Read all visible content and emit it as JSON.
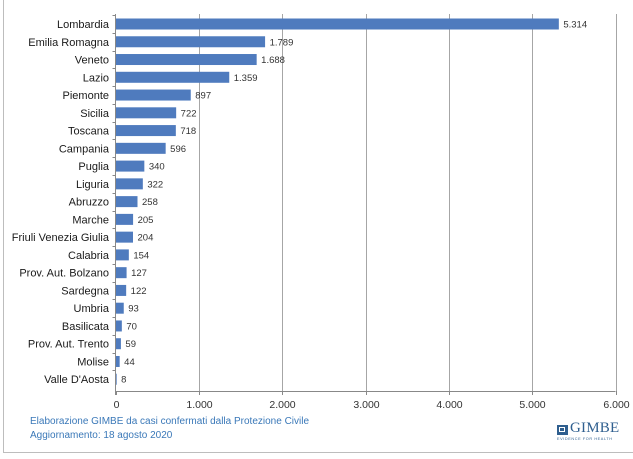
{
  "chart_data": {
    "type": "bar",
    "orientation": "horizontal",
    "title": "",
    "xlabel": "",
    "ylabel": "",
    "categories": [
      "Lombardia",
      "Emilia Romagna",
      "Veneto",
      "Lazio",
      "Piemonte",
      "Sicilia",
      "Toscana",
      "Campania",
      "Puglia",
      "Liguria",
      "Abruzzo",
      "Marche",
      "Friuli Venezia Giulia",
      "Calabria",
      "Prov. Aut. Bolzano",
      "Sardegna",
      "Umbria",
      "Basilicata",
      "Prov. Aut. Trento",
      "Molise",
      "Valle D'Aosta"
    ],
    "values": [
      5314,
      1789,
      1688,
      1359,
      897,
      722,
      718,
      596,
      340,
      322,
      258,
      205,
      204,
      154,
      127,
      122,
      93,
      70,
      59,
      44,
      8
    ],
    "value_labels": [
      "5.314",
      "1.789",
      "1.688",
      "1.359",
      "897",
      "722",
      "718",
      "596",
      "340",
      "322",
      "258",
      "205",
      "204",
      "154",
      "127",
      "122",
      "93",
      "70",
      "59",
      "44",
      "8"
    ],
    "xlim": [
      0,
      6000
    ],
    "xticks": [
      0,
      1000,
      2000,
      3000,
      4000,
      5000,
      6000
    ],
    "xtick_labels": [
      "0",
      "1.000",
      "2.000",
      "3.000",
      "4.000",
      "5.000",
      "6.000"
    ],
    "grid": "vertical",
    "legend": "none",
    "bar_color": "#4F7BBE",
    "grid_color": "#a6a6a6"
  },
  "footnote": {
    "line1": "Elaborazione GIMBE da casi confermati dalla Protezione Civile",
    "line2": "Aggiornamento: 18 agosto 2020",
    "color": "#3a78b8"
  },
  "logo": {
    "name": "GIMBE",
    "tagline": "EVIDENCE FOR HEALTH"
  }
}
